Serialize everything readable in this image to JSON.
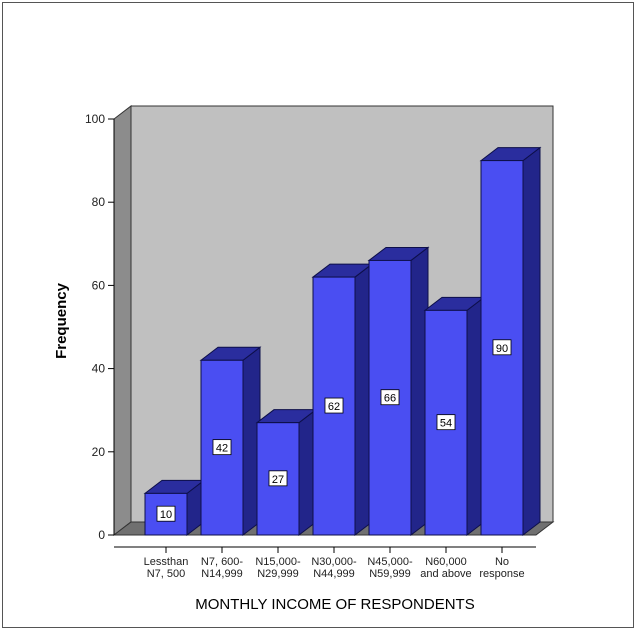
{
  "chart_data": {
    "type": "bar",
    "style": "3d",
    "xlabel": "MONTHLY INCOME OF RESPONDENTS",
    "ylabel": "Frequency",
    "ylim": [
      0,
      100
    ],
    "yticks": [
      0,
      20,
      40,
      60,
      80,
      100
    ],
    "categories": [
      [
        "Lessthan",
        "N7, 500"
      ],
      [
        "N7, 600-",
        "N14,999"
      ],
      [
        "N15,000-",
        "N29,999"
      ],
      [
        "N30,000-",
        "N44,999"
      ],
      [
        "N45,000-",
        "N59,999"
      ],
      [
        "N60,000",
        "and above"
      ],
      [
        "No",
        "response"
      ]
    ],
    "values": [
      10,
      42,
      27,
      62,
      66,
      54,
      90
    ],
    "data_labels": [
      "10",
      "42",
      "27",
      "62",
      "66",
      "54",
      "90"
    ],
    "grid": false,
    "colors": {
      "bar_front": "#4a4ef2",
      "bar_top": "#2a2d9e",
      "bar_side": "#22258a",
      "bar_edge": "#0d0f4a",
      "back_wall": "#c0c0c0",
      "side_wall": "#8c8c8c",
      "floor": "#707070"
    }
  }
}
